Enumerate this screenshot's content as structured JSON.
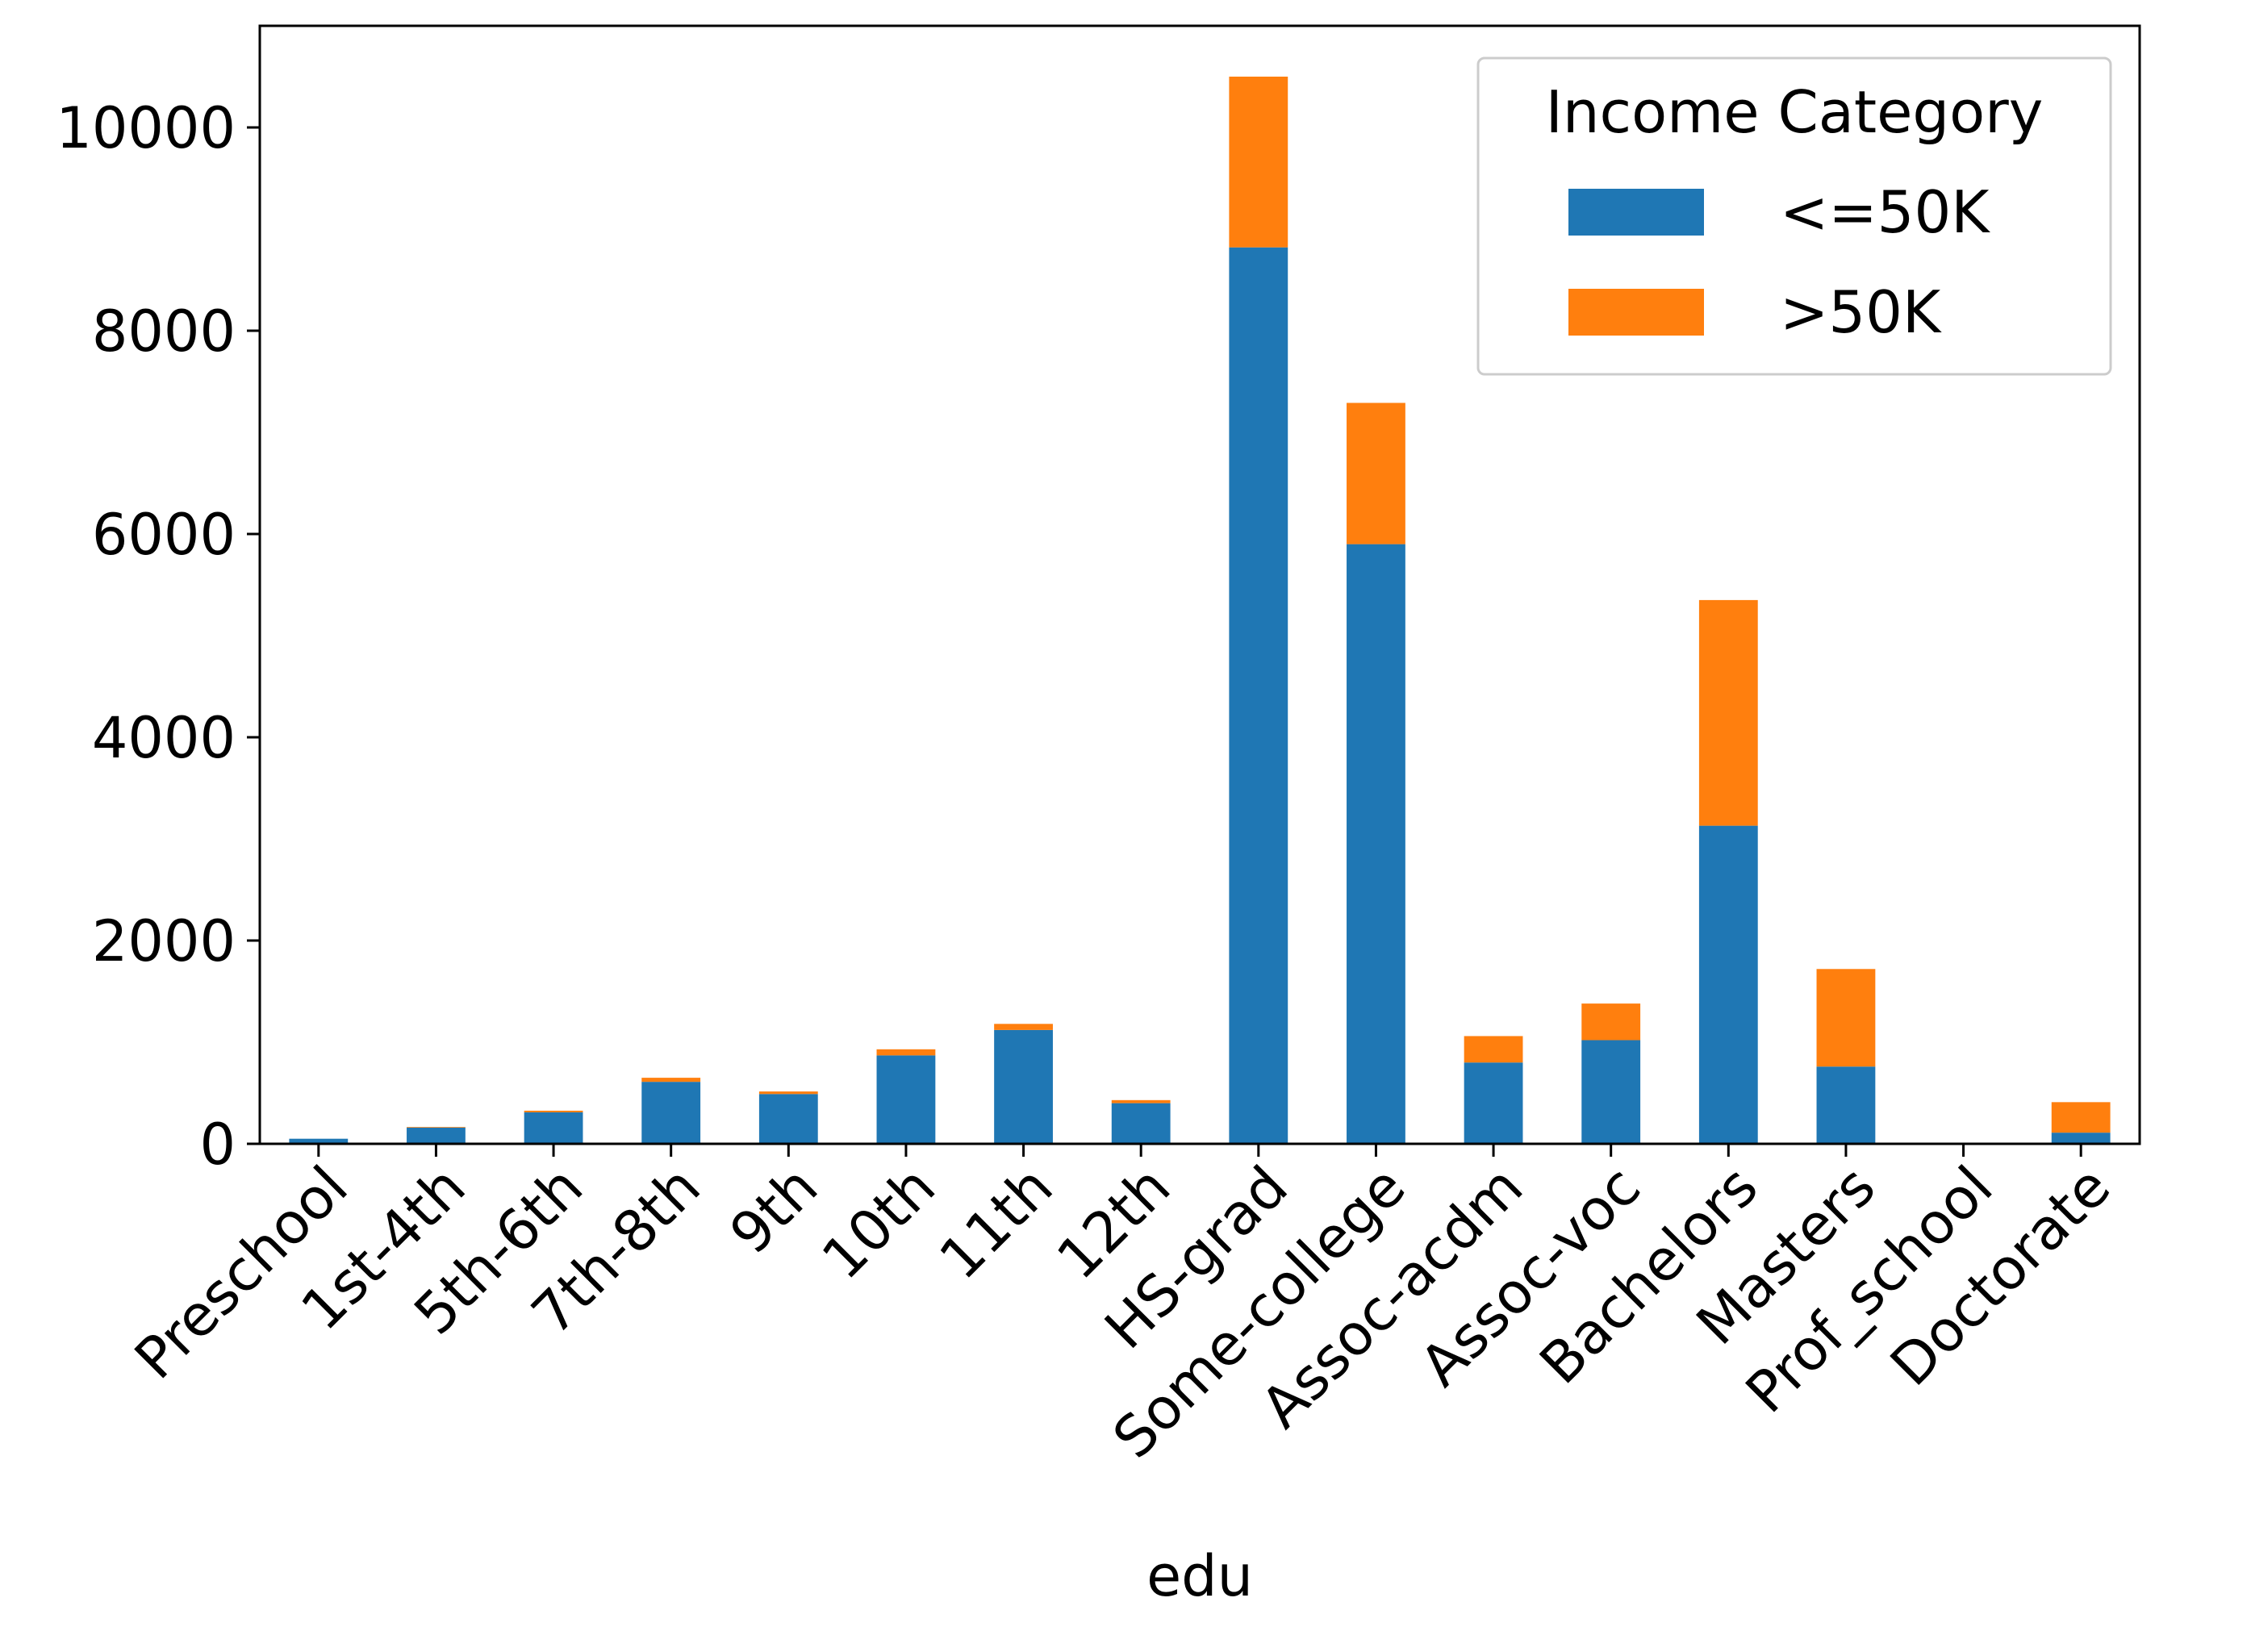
{
  "chart_data": {
    "type": "bar",
    "stacked": true,
    "xlabel": "edu",
    "ylabel": "",
    "ylim": [
      0,
      11000
    ],
    "yticks": [
      0,
      2000,
      4000,
      6000,
      8000,
      10000
    ],
    "grid": false,
    "categories": [
      "Preschool",
      "1st-4th",
      "5th-6th",
      "7th-8th",
      "9th",
      "10th",
      "11th",
      "12th",
      "HS-grad",
      "Some-college",
      "Assoc-acdm",
      "Assoc-voc",
      "Bachelors",
      "Masters",
      "Prof_school",
      "Doctorate"
    ],
    "series": [
      {
        "name": "<=50K",
        "color": "#1f77b4",
        "values": [
          50,
          160,
          310,
          610,
          490,
          870,
          1120,
          400,
          8820,
          5900,
          800,
          1020,
          3130,
          760,
          0,
          110
        ]
      },
      {
        "name": ">50K",
        "color": "#ff7f0e",
        "values": [
          0,
          6,
          16,
          40,
          25,
          60,
          60,
          30,
          1680,
          1390,
          260,
          360,
          2220,
          960,
          0,
          300
        ]
      }
    ],
    "legend": {
      "title": "Income Category",
      "placement": "top-right"
    }
  }
}
